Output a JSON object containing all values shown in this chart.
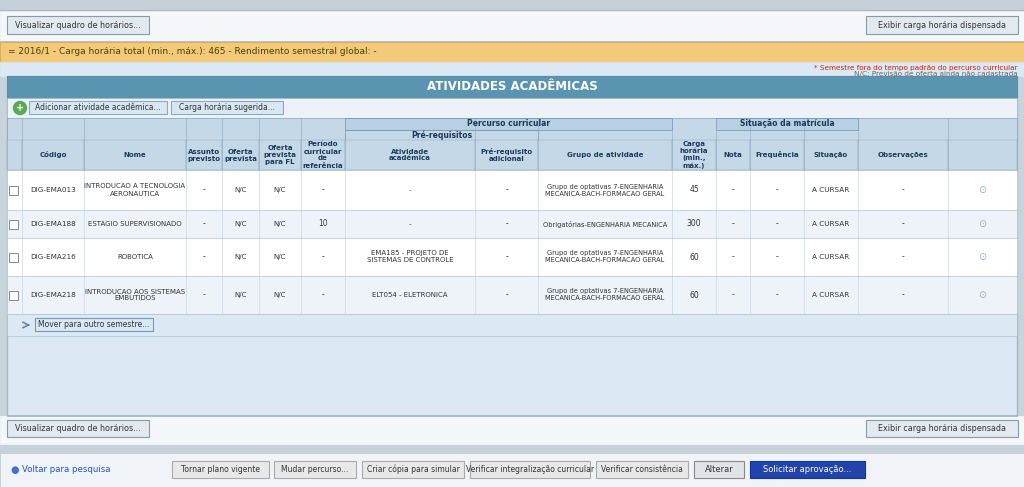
{
  "bg_outer": "#c8d4dc",
  "bg_main": "#dce8f0",
  "white": "#ffffff",
  "orange_bar_color": "#f5c97a",
  "orange_bar_text": "= 2016/1 - Carga horária total (min., máx.): 465 - Rendimento semestral global: -",
  "red_text": "* Semestre fora do tempo padrão do percurso curricular",
  "gray_note": "N/C: Previsão de oferta ainda não cadastrada",
  "title_bg": "#5b94b0",
  "title_text": "ATIVIDADES ACADÊMICAS",
  "title_color": "#ffffff",
  "btn1_text": "Adicionar atividade acadêmica...",
  "btn2_text": "Carga horária sugerida...",
  "percurso_header": "Percurso curricular",
  "prereq_header": "Pré-requisitos",
  "sit_header": "Situação da matrícula",
  "header_bg": "#c5d8e8",
  "header_bg_dark": "#b0c8dc",
  "rows": [
    {
      "codigo": "DIG-EMA013",
      "nome": "INTRODUCAO A TECNOLOGIA\nAERONAUTICA",
      "assunto": "-",
      "oferta": "N/C",
      "oferta_fl": "N/C",
      "periodo": "-",
      "ativ_acad": "-",
      "prereq_adic": "-",
      "grupo": "Grupo de optativas 7-ENGENHARIA\nMECANICA-BACH-FORMACAO GERAL",
      "carga": "45",
      "nota": "-",
      "freq": "-",
      "situacao": "A CURSAR",
      "obs": "-",
      "row_bg": "#ffffff"
    },
    {
      "codigo": "DIG-EMA188",
      "nome": "ESTAGIO SUPERVISIONADO",
      "assunto": "-",
      "oferta": "N/C",
      "oferta_fl": "N/C",
      "periodo": "10",
      "ativ_acad": "-",
      "prereq_adic": "-",
      "grupo": "Obrigatórias-ENGENHARIA MECANICA",
      "carga": "300",
      "nota": "-",
      "freq": "-",
      "situacao": "A CURSAR",
      "obs": "-",
      "row_bg": "#edf3f8"
    },
    {
      "codigo": "DIG-EMA216",
      "nome": "ROBOTICA",
      "assunto": "-",
      "oferta": "N/C",
      "oferta_fl": "N/C",
      "periodo": "-",
      "ativ_acad": "EMA185 - PROJETO DE\nSISTEMAS DE CONTROLE",
      "prereq_adic": "-",
      "grupo": "Grupo de optativas 7-ENGENHARIA\nMECANICA-BACH-FORMACAO GERAL",
      "carga": "60",
      "nota": "-",
      "freq": "-",
      "situacao": "A CURSAR",
      "obs": "-",
      "row_bg": "#ffffff"
    },
    {
      "codigo": "DIG-EMA218",
      "nome": "INTRODUCAO AOS SISTEMAS\nEMBUTIDOS",
      "assunto": "-",
      "oferta": "N/C",
      "oferta_fl": "N/C",
      "periodo": "-",
      "ativ_acad": "ELT054 - ELETRONICA",
      "prereq_adic": "-",
      "grupo": "Grupo de optativas 7-ENGENHARIA\nMECANICA-BACH-FORMACAO GERAL",
      "carga": "60",
      "nota": "-",
      "freq": "-",
      "situacao": "A CURSAR",
      "obs": "-",
      "row_bg": "#edf3f8"
    }
  ],
  "footer_btns": [
    "Tornar plano vigente",
    "Mudar percurso...",
    "Criar cópia para simular",
    "Verificar integralização curricular",
    "Verificar consistência"
  ],
  "footer_right_btns": [
    "Alterar",
    "Solicitar aprovação..."
  ],
  "footer_left_link": "Voltar para pesquisa",
  "vis_btn": "Visualizar quadro de horários...",
  "exibir_btn": "Exibir carga horária dispensada",
  "mover_btn": "Mover para outro semestre..."
}
